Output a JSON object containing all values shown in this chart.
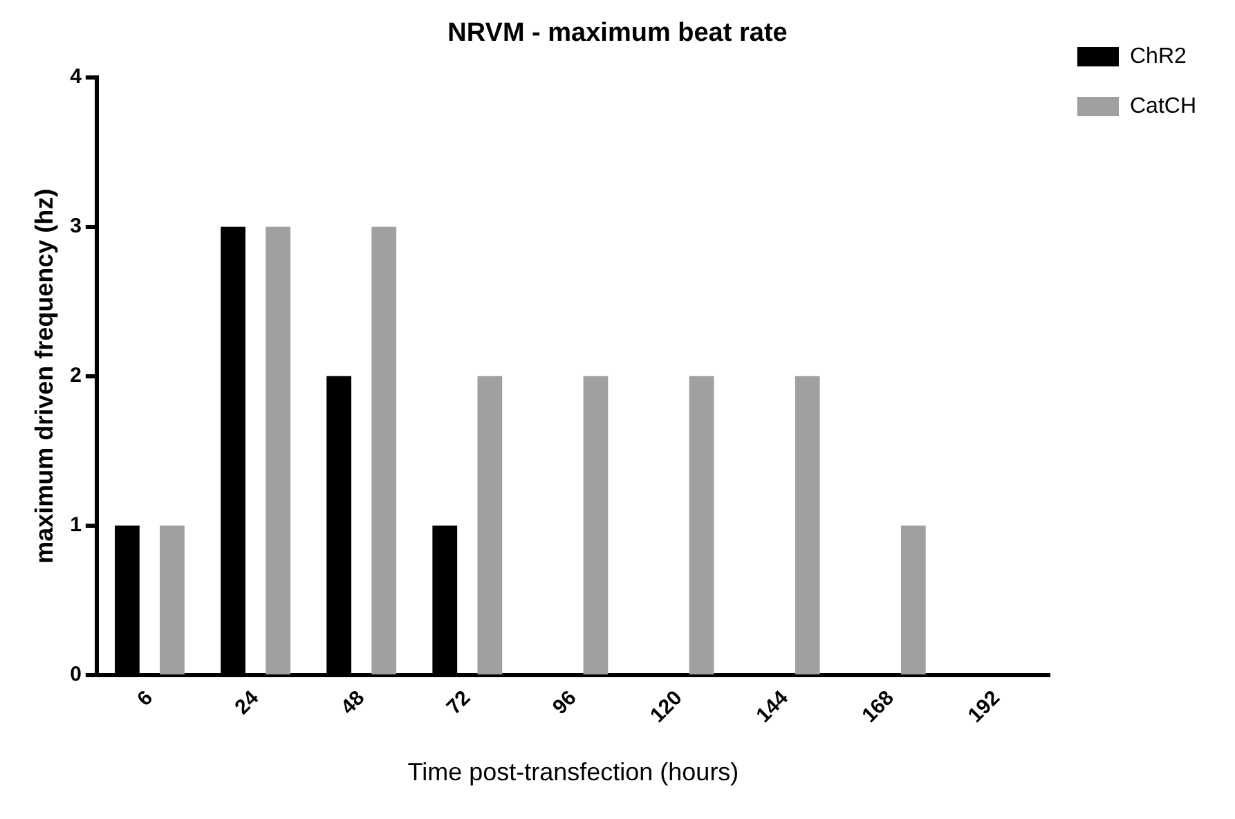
{
  "chart_data": {
    "type": "bar",
    "title": "NRVM - maximum beat rate",
    "xlabel": "Time post-transfection (hours)",
    "ylabel": "maximum driven frequency (hz)",
    "categories": [
      "6",
      "24",
      "48",
      "72",
      "96",
      "120",
      "144",
      "168",
      "192"
    ],
    "series": [
      {
        "name": "ChR2",
        "color": "#000000",
        "values": [
          1,
          3,
          2,
          1,
          0,
          0,
          0,
          0,
          0
        ]
      },
      {
        "name": "CatCH",
        "color": "#a0a0a0",
        "values": [
          1,
          3,
          3,
          2,
          2,
          2,
          2,
          1,
          0
        ]
      }
    ],
    "ylim": [
      0,
      4
    ],
    "yticks": [
      0,
      1,
      2,
      3,
      4
    ],
    "grid": false,
    "legend": "top right"
  }
}
